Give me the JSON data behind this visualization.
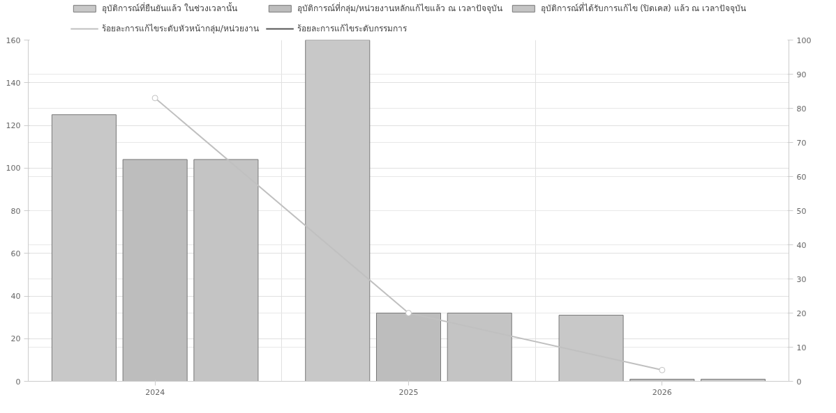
{
  "chart_data": {
    "type": "bar",
    "categories": [
      "2024",
      "2025",
      "2026"
    ],
    "series": [
      {
        "name": "อุบัติการณ์ที่ยืนยันแล้ว ในช่วงเวลานั้น",
        "color": "#c8c8c8",
        "values": [
          125,
          160,
          31
        ]
      },
      {
        "name": "อุบัติการณ์ที่กลุ่ม/หน่วยงานหลักแก้ไขแล้ว ณ เวลาปัจจุบัน",
        "color": "#bdbdbd",
        "values": [
          104,
          32,
          1
        ]
      },
      {
        "name": "อุบัติการณ์ที่ได้รับการแก้ไข (ปิดเคส) แล้ว ณ เวลาปัจจุบัน",
        "color": "#c4c4c4",
        "values": [
          104,
          32,
          1
        ]
      },
      {
        "name": "ร้อยละการแก้ไขระดับหัวหน้ากลุ่ม/หน่วยงาน",
        "color": "#c0c0c0",
        "type": "line",
        "axis": "y2",
        "values": [
          83,
          20,
          3.3
        ]
      },
      {
        "name": "ร้อยละการแก้ไขระดับกรรมการ",
        "color": "#555555",
        "type": "line",
        "axis": "y2",
        "values": [
          null,
          null,
          null
        ]
      }
    ],
    "ylim": [
      0,
      160
    ],
    "yticks": [
      0,
      20,
      40,
      60,
      80,
      100,
      120,
      140,
      160
    ],
    "y2lim": [
      0,
      100
    ],
    "y2ticks": [
      0,
      10,
      20,
      30,
      40,
      50,
      60,
      70,
      80,
      90,
      100
    ],
    "grid": true,
    "legend": "top",
    "marker": "circle"
  }
}
